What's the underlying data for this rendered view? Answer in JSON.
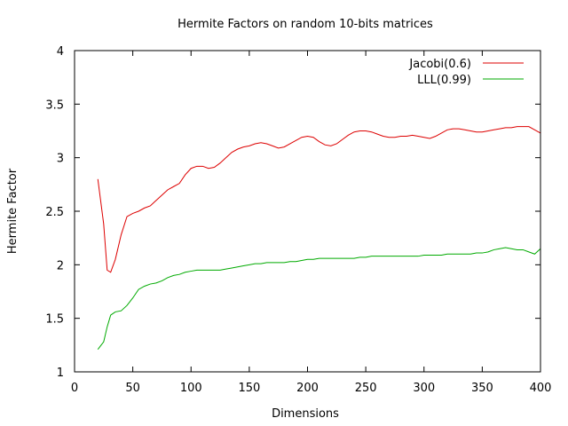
{
  "chart_data": {
    "type": "line",
    "title": "Hermite Factors on random 10-bits matrices",
    "xlabel": "Dimensions",
    "ylabel": "Hermite Factor",
    "xlim": [
      0,
      400
    ],
    "ylim": [
      1,
      4
    ],
    "xticks": [
      "0",
      "50",
      "100",
      "150",
      "200",
      "250",
      "300",
      "350",
      "400"
    ],
    "yticks": [
      "1",
      "1.5",
      "2",
      "2.5",
      "3",
      "3.5",
      "4"
    ],
    "grid": false,
    "legend_position": "top-right",
    "series": [
      {
        "name": "Jacobi(0.6)",
        "color": "#dd0000",
        "points": [
          [
            20,
            2.8
          ],
          [
            25,
            2.38
          ],
          [
            28,
            1.95
          ],
          [
            31,
            1.93
          ],
          [
            35,
            2.05
          ],
          [
            40,
            2.28
          ],
          [
            45,
            2.45
          ],
          [
            50,
            2.48
          ],
          [
            55,
            2.5
          ],
          [
            60,
            2.53
          ],
          [
            65,
            2.55
          ],
          [
            70,
            2.6
          ],
          [
            75,
            2.65
          ],
          [
            80,
            2.7
          ],
          [
            85,
            2.73
          ],
          [
            90,
            2.76
          ],
          [
            95,
            2.84
          ],
          [
            100,
            2.9
          ],
          [
            105,
            2.92
          ],
          [
            110,
            2.92
          ],
          [
            115,
            2.9
          ],
          [
            120,
            2.91
          ],
          [
            125,
            2.95
          ],
          [
            130,
            3.0
          ],
          [
            135,
            3.05
          ],
          [
            140,
            3.08
          ],
          [
            145,
            3.1
          ],
          [
            150,
            3.11
          ],
          [
            155,
            3.13
          ],
          [
            160,
            3.14
          ],
          [
            165,
            3.13
          ],
          [
            170,
            3.11
          ],
          [
            175,
            3.09
          ],
          [
            180,
            3.1
          ],
          [
            185,
            3.13
          ],
          [
            190,
            3.16
          ],
          [
            195,
            3.19
          ],
          [
            200,
            3.2
          ],
          [
            205,
            3.19
          ],
          [
            210,
            3.15
          ],
          [
            215,
            3.12
          ],
          [
            220,
            3.11
          ],
          [
            225,
            3.13
          ],
          [
            230,
            3.17
          ],
          [
            235,
            3.21
          ],
          [
            240,
            3.24
          ],
          [
            245,
            3.25
          ],
          [
            250,
            3.25
          ],
          [
            255,
            3.24
          ],
          [
            260,
            3.22
          ],
          [
            265,
            3.2
          ],
          [
            270,
            3.19
          ],
          [
            275,
            3.19
          ],
          [
            280,
            3.2
          ],
          [
            285,
            3.2
          ],
          [
            290,
            3.21
          ],
          [
            295,
            3.2
          ],
          [
            300,
            3.19
          ],
          [
            305,
            3.18
          ],
          [
            310,
            3.2
          ],
          [
            315,
            3.23
          ],
          [
            320,
            3.26
          ],
          [
            325,
            3.27
          ],
          [
            330,
            3.27
          ],
          [
            335,
            3.26
          ],
          [
            340,
            3.25
          ],
          [
            345,
            3.24
          ],
          [
            350,
            3.24
          ],
          [
            355,
            3.25
          ],
          [
            360,
            3.26
          ],
          [
            365,
            3.27
          ],
          [
            370,
            3.28
          ],
          [
            375,
            3.28
          ],
          [
            380,
            3.29
          ],
          [
            385,
            3.29
          ],
          [
            390,
            3.29
          ],
          [
            395,
            3.26
          ],
          [
            400,
            3.23
          ]
        ]
      },
      {
        "name": "LLL(0.99)",
        "color": "#00aa00",
        "points": [
          [
            20,
            1.21
          ],
          [
            25,
            1.28
          ],
          [
            28,
            1.42
          ],
          [
            31,
            1.53
          ],
          [
            35,
            1.56
          ],
          [
            40,
            1.57
          ],
          [
            45,
            1.62
          ],
          [
            50,
            1.69
          ],
          [
            55,
            1.77
          ],
          [
            60,
            1.8
          ],
          [
            65,
            1.82
          ],
          [
            70,
            1.83
          ],
          [
            75,
            1.85
          ],
          [
            80,
            1.88
          ],
          [
            85,
            1.9
          ],
          [
            90,
            1.91
          ],
          [
            95,
            1.93
          ],
          [
            100,
            1.94
          ],
          [
            105,
            1.95
          ],
          [
            110,
            1.95
          ],
          [
            115,
            1.95
          ],
          [
            120,
            1.95
          ],
          [
            125,
            1.95
          ],
          [
            130,
            1.96
          ],
          [
            135,
            1.97
          ],
          [
            140,
            1.98
          ],
          [
            145,
            1.99
          ],
          [
            150,
            2.0
          ],
          [
            155,
            2.01
          ],
          [
            160,
            2.01
          ],
          [
            165,
            2.02
          ],
          [
            170,
            2.02
          ],
          [
            175,
            2.02
          ],
          [
            180,
            2.02
          ],
          [
            185,
            2.03
          ],
          [
            190,
            2.03
          ],
          [
            195,
            2.04
          ],
          [
            200,
            2.05
          ],
          [
            205,
            2.05
          ],
          [
            210,
            2.06
          ],
          [
            215,
            2.06
          ],
          [
            220,
            2.06
          ],
          [
            225,
            2.06
          ],
          [
            230,
            2.06
          ],
          [
            235,
            2.06
          ],
          [
            240,
            2.06
          ],
          [
            245,
            2.07
          ],
          [
            250,
            2.07
          ],
          [
            255,
            2.08
          ],
          [
            260,
            2.08
          ],
          [
            265,
            2.08
          ],
          [
            270,
            2.08
          ],
          [
            275,
            2.08
          ],
          [
            280,
            2.08
          ],
          [
            285,
            2.08
          ],
          [
            290,
            2.08
          ],
          [
            295,
            2.08
          ],
          [
            300,
            2.09
          ],
          [
            305,
            2.09
          ],
          [
            310,
            2.09
          ],
          [
            315,
            2.09
          ],
          [
            320,
            2.1
          ],
          [
            325,
            2.1
          ],
          [
            330,
            2.1
          ],
          [
            335,
            2.1
          ],
          [
            340,
            2.1
          ],
          [
            345,
            2.11
          ],
          [
            350,
            2.11
          ],
          [
            355,
            2.12
          ],
          [
            360,
            2.14
          ],
          [
            365,
            2.15
          ],
          [
            370,
            2.16
          ],
          [
            375,
            2.15
          ],
          [
            380,
            2.14
          ],
          [
            385,
            2.14
          ],
          [
            390,
            2.12
          ],
          [
            395,
            2.1
          ],
          [
            400,
            2.15
          ]
        ]
      }
    ]
  }
}
